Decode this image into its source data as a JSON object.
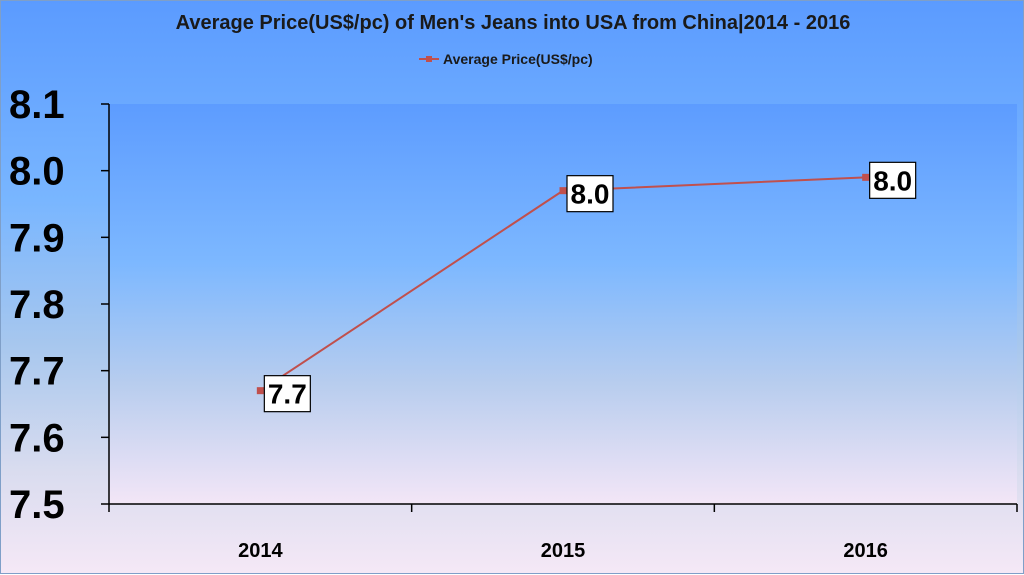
{
  "chart_data": {
    "type": "line",
    "title": "Average Price(US$/pc) of Men's Jeans into USA from China|2014 - 2016",
    "categories": [
      "2014",
      "2015",
      "2016"
    ],
    "series": [
      {
        "name": "Average Price(US$/pc)",
        "values": [
          7.67,
          7.97,
          7.99
        ],
        "data_labels": [
          "7.7",
          "8.0",
          "8.0"
        ],
        "color": "#c0504d"
      }
    ],
    "ylim": [
      7.5,
      8.1
    ],
    "yticks": [
      "8.1",
      "8.0",
      "7.9",
      "7.8",
      "7.7",
      "7.6",
      "7.5"
    ],
    "legend_position": "top",
    "grid": false
  }
}
